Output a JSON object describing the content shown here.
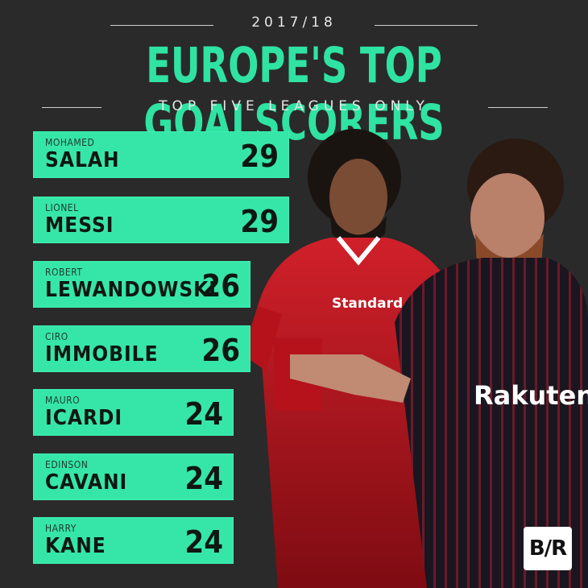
{
  "header": {
    "season": "2017/18",
    "title": "EUROPE'S TOP GOALSCORERS",
    "subtitle": "TOP FIVE LEAGUES ONLY"
  },
  "players": [
    {
      "first": "MOHAMED",
      "last": "SALAH",
      "goals": "29"
    },
    {
      "first": "LIONEL",
      "last": "MESSI",
      "goals": "29"
    },
    {
      "first": "ROBERT",
      "last": "LEWANDOWSKI",
      "goals": "26"
    },
    {
      "first": "CIRO",
      "last": "IMMOBILE",
      "goals": "26"
    },
    {
      "first": "MAURO",
      "last": "ICARDI",
      "goals": "24"
    },
    {
      "first": "EDINSON",
      "last": "CAVANI",
      "goals": "24"
    },
    {
      "first": "HARRY",
      "last": "KANE",
      "goals": "24"
    }
  ],
  "photo": {
    "salah_kit_text": "Standard Chartered",
    "messi_kit_text": "Rakuten"
  },
  "logo": {
    "text": "B/R"
  },
  "colors": {
    "accent": "#36e6a8",
    "background": "#2a2a2a",
    "liverpool_red": "#b5121b",
    "barca_dark": "#1f1420"
  }
}
